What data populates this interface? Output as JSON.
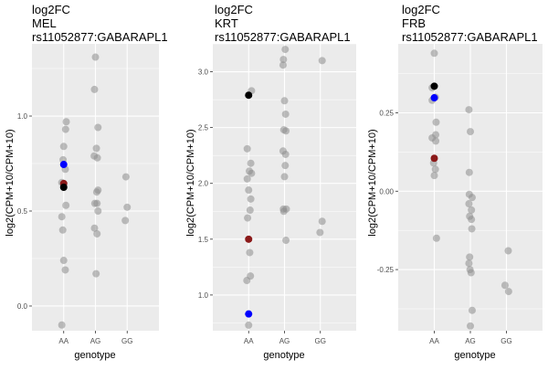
{
  "chart_data": [
    {
      "type": "scatter",
      "title_lines": [
        "log2FC",
        "MEL",
        "rs11052877:GABARAPL1"
      ],
      "xlabel": "genotype",
      "ylabel": "log2(CPM+10/CPM+10)",
      "categories": [
        "AA",
        "AG",
        "GG"
      ],
      "ylim": [
        -0.13,
        1.38
      ],
      "yticks": [
        0.0,
        0.5,
        1.0
      ],
      "ytick_labels": [
        "0.0",
        "0.5",
        "1.0"
      ],
      "grid": true,
      "legend": "none",
      "colors": {
        "panel": "#ebebeb",
        "grid": "#ffffff",
        "point": "#8c8c8c",
        "black": "#000000",
        "blue": "#0000ff",
        "red": "#8b1a1a"
      },
      "points": [
        {
          "x": "AA",
          "dx": 0.08,
          "y": 0.97
        },
        {
          "x": "AA",
          "dx": 0.06,
          "y": 0.93
        },
        {
          "x": "AA",
          "dx": 0.0,
          "y": 0.84
        },
        {
          "x": "AA",
          "dx": -0.02,
          "y": 0.77
        },
        {
          "x": "AA",
          "dx": 0.05,
          "y": 0.72
        },
        {
          "x": "AA",
          "dx": -0.06,
          "y": 0.65
        },
        {
          "x": "AA",
          "dx": 0.07,
          "y": 0.53
        },
        {
          "x": "AA",
          "dx": -0.06,
          "y": 0.47
        },
        {
          "x": "AA",
          "dx": -0.03,
          "y": 0.4
        },
        {
          "x": "AA",
          "dx": 0.0,
          "y": 0.24
        },
        {
          "x": "AA",
          "dx": 0.05,
          "y": 0.19
        },
        {
          "x": "AA",
          "dx": -0.06,
          "y": -0.1
        },
        {
          "x": "AG",
          "dx": 0.0,
          "y": 1.31
        },
        {
          "x": "AG",
          "dx": -0.03,
          "y": 1.14
        },
        {
          "x": "AG",
          "dx": 0.08,
          "y": 0.94
        },
        {
          "x": "AG",
          "dx": 0.03,
          "y": 0.83
        },
        {
          "x": "AG",
          "dx": -0.04,
          "y": 0.79
        },
        {
          "x": "AG",
          "dx": 0.06,
          "y": 0.78
        },
        {
          "x": "AG",
          "dx": 0.08,
          "y": 0.61
        },
        {
          "x": "AG",
          "dx": 0.04,
          "y": 0.6
        },
        {
          "x": "AG",
          "dx": -0.02,
          "y": 0.54
        },
        {
          "x": "AG",
          "dx": 0.05,
          "y": 0.54
        },
        {
          "x": "AG",
          "dx": 0.08,
          "y": 0.5
        },
        {
          "x": "AG",
          "dx": -0.03,
          "y": 0.41
        },
        {
          "x": "AG",
          "dx": 0.05,
          "y": 0.38
        },
        {
          "x": "AG",
          "dx": 0.02,
          "y": 0.17
        },
        {
          "x": "GG",
          "dx": -0.04,
          "y": 0.68
        },
        {
          "x": "GG",
          "dx": 0.0,
          "y": 0.52
        },
        {
          "x": "GG",
          "dx": -0.06,
          "y": 0.45
        }
      ],
      "highlights": [
        {
          "x": "AA",
          "dx": 0.0,
          "y": 0.745,
          "color": "blue"
        },
        {
          "x": "AA",
          "dx": 0.0,
          "y": 0.645,
          "color": "red"
        },
        {
          "x": "AA",
          "dx": 0.0,
          "y": 0.625,
          "color": "black"
        }
      ]
    },
    {
      "type": "scatter",
      "title_lines": [
        "log2FC",
        "KRT",
        "rs11052877:GABARAPL1"
      ],
      "xlabel": "genotype",
      "ylabel": "log2(CPM+10/CPM+10)",
      "categories": [
        "AA",
        "AG",
        "GG"
      ],
      "ylim": [
        0.68,
        3.25
      ],
      "yticks": [
        1.0,
        1.5,
        2.0,
        2.5,
        3.0
      ],
      "ytick_labels": [
        "1.0",
        "1.5",
        "2.0",
        "2.5",
        "3.0"
      ],
      "grid": true,
      "legend": "none",
      "colors": {
        "panel": "#ebebeb",
        "grid": "#ffffff",
        "point": "#8c8c8c",
        "black": "#000000",
        "blue": "#0000ff",
        "red": "#8b1a1a"
      },
      "points": [
        {
          "x": "AA",
          "dx": 0.08,
          "y": 2.83
        },
        {
          "x": "AA",
          "dx": -0.04,
          "y": 2.31
        },
        {
          "x": "AA",
          "dx": 0.06,
          "y": 2.18
        },
        {
          "x": "AA",
          "dx": 0.02,
          "y": 2.11
        },
        {
          "x": "AA",
          "dx": 0.08,
          "y": 2.09
        },
        {
          "x": "AA",
          "dx": -0.04,
          "y": 2.04
        },
        {
          "x": "AA",
          "dx": 0.0,
          "y": 1.94
        },
        {
          "x": "AA",
          "dx": 0.06,
          "y": 1.86
        },
        {
          "x": "AA",
          "dx": 0.04,
          "y": 1.76
        },
        {
          "x": "AA",
          "dx": -0.03,
          "y": 1.69
        },
        {
          "x": "AA",
          "dx": 0.03,
          "y": 1.38
        },
        {
          "x": "AA",
          "dx": 0.05,
          "y": 1.17
        },
        {
          "x": "AA",
          "dx": -0.05,
          "y": 1.13
        },
        {
          "x": "AA",
          "dx": 0.0,
          "y": 0.73
        },
        {
          "x": "AG",
          "dx": 0.02,
          "y": 3.2
        },
        {
          "x": "AG",
          "dx": -0.03,
          "y": 3.11
        },
        {
          "x": "AG",
          "dx": -0.04,
          "y": 3.06
        },
        {
          "x": "AG",
          "dx": 0.0,
          "y": 2.74
        },
        {
          "x": "AG",
          "dx": 0.03,
          "y": 2.62
        },
        {
          "x": "AG",
          "dx": -0.02,
          "y": 2.48
        },
        {
          "x": "AG",
          "dx": 0.04,
          "y": 2.47
        },
        {
          "x": "AG",
          "dx": -0.04,
          "y": 2.29
        },
        {
          "x": "AG",
          "dx": 0.03,
          "y": 2.26
        },
        {
          "x": "AG",
          "dx": 0.02,
          "y": 2.16
        },
        {
          "x": "AG",
          "dx": 0.0,
          "y": 2.06
        },
        {
          "x": "AG",
          "dx": -0.03,
          "y": 1.77
        },
        {
          "x": "AG",
          "dx": 0.05,
          "y": 1.77
        },
        {
          "x": "AG",
          "dx": -0.02,
          "y": 1.75
        },
        {
          "x": "AG",
          "dx": 0.04,
          "y": 1.49
        },
        {
          "x": "GG",
          "dx": 0.05,
          "y": 3.1
        },
        {
          "x": "GG",
          "dx": 0.05,
          "y": 1.66
        },
        {
          "x": "GG",
          "dx": -0.01,
          "y": 1.56
        }
      ],
      "highlights": [
        {
          "x": "AA",
          "dx": 0.0,
          "y": 2.79,
          "color": "black"
        },
        {
          "x": "AA",
          "dx": 0.0,
          "y": 1.5,
          "color": "red"
        },
        {
          "x": "AA",
          "dx": 0.0,
          "y": 0.83,
          "color": "blue"
        }
      ]
    },
    {
      "type": "scatter",
      "title_lines": [
        "log2FC",
        "FRB",
        "rs11052877:GABARAPL1"
      ],
      "xlabel": "genotype",
      "ylabel": "log2(CPM+10/CPM+10)",
      "categories": [
        "AA",
        "AG",
        "GG"
      ],
      "ylim": [
        -0.445,
        0.47
      ],
      "yticks": [
        -0.25,
        0.0,
        0.25
      ],
      "ytick_labels": [
        "-0.25",
        "0.00",
        "0.25"
      ],
      "grid": true,
      "legend": "none",
      "colors": {
        "panel": "#ebebeb",
        "grid": "#ffffff",
        "point": "#8c8c8c",
        "black": "#000000",
        "blue": "#0000ff",
        "red": "#8b1a1a"
      },
      "points": [
        {
          "x": "AA",
          "dx": 0.0,
          "y": 0.44
        },
        {
          "x": "AA",
          "dx": -0.06,
          "y": 0.33
        },
        {
          "x": "AA",
          "dx": 0.03,
          "y": 0.3
        },
        {
          "x": "AA",
          "dx": -0.06,
          "y": 0.29
        },
        {
          "x": "AA",
          "dx": 0.05,
          "y": 0.22
        },
        {
          "x": "AA",
          "dx": 0.04,
          "y": 0.18
        },
        {
          "x": "AA",
          "dx": -0.06,
          "y": 0.17
        },
        {
          "x": "AA",
          "dx": 0.04,
          "y": 0.16
        },
        {
          "x": "AA",
          "dx": -0.02,
          "y": 0.09
        },
        {
          "x": "AA",
          "dx": 0.03,
          "y": 0.07
        },
        {
          "x": "AA",
          "dx": 0.0,
          "y": 0.05
        },
        {
          "x": "AA",
          "dx": 0.06,
          "y": -0.15
        },
        {
          "x": "AG",
          "dx": -0.04,
          "y": 0.26
        },
        {
          "x": "AG",
          "dx": 0.0,
          "y": 0.19
        },
        {
          "x": "AG",
          "dx": -0.03,
          "y": 0.06
        },
        {
          "x": "AG",
          "dx": -0.03,
          "y": -0.01
        },
        {
          "x": "AG",
          "dx": 0.05,
          "y": -0.02
        },
        {
          "x": "AG",
          "dx": -0.04,
          "y": -0.04
        },
        {
          "x": "AG",
          "dx": 0.03,
          "y": -0.06
        },
        {
          "x": "AG",
          "dx": -0.02,
          "y": -0.08
        },
        {
          "x": "AG",
          "dx": 0.03,
          "y": -0.09
        },
        {
          "x": "AG",
          "dx": 0.04,
          "y": -0.12
        },
        {
          "x": "AG",
          "dx": -0.02,
          "y": -0.21
        },
        {
          "x": "AG",
          "dx": -0.04,
          "y": -0.23
        },
        {
          "x": "AG",
          "dx": -0.01,
          "y": -0.25
        },
        {
          "x": "AG",
          "dx": 0.02,
          "y": -0.26
        },
        {
          "x": "AG",
          "dx": 0.05,
          "y": -0.38
        },
        {
          "x": "AG",
          "dx": 0.0,
          "y": -0.43
        },
        {
          "x": "GG",
          "dx": -0.04,
          "y": -0.3
        },
        {
          "x": "GG",
          "dx": 0.05,
          "y": -0.19
        },
        {
          "x": "GG",
          "dx": 0.06,
          "y": -0.32
        }
      ],
      "highlights": [
        {
          "x": "AA",
          "dx": 0.0,
          "y": 0.335,
          "color": "black"
        },
        {
          "x": "AA",
          "dx": 0.0,
          "y": 0.298,
          "color": "blue"
        },
        {
          "x": "AA",
          "dx": 0.0,
          "y": 0.105,
          "color": "red"
        }
      ]
    }
  ]
}
